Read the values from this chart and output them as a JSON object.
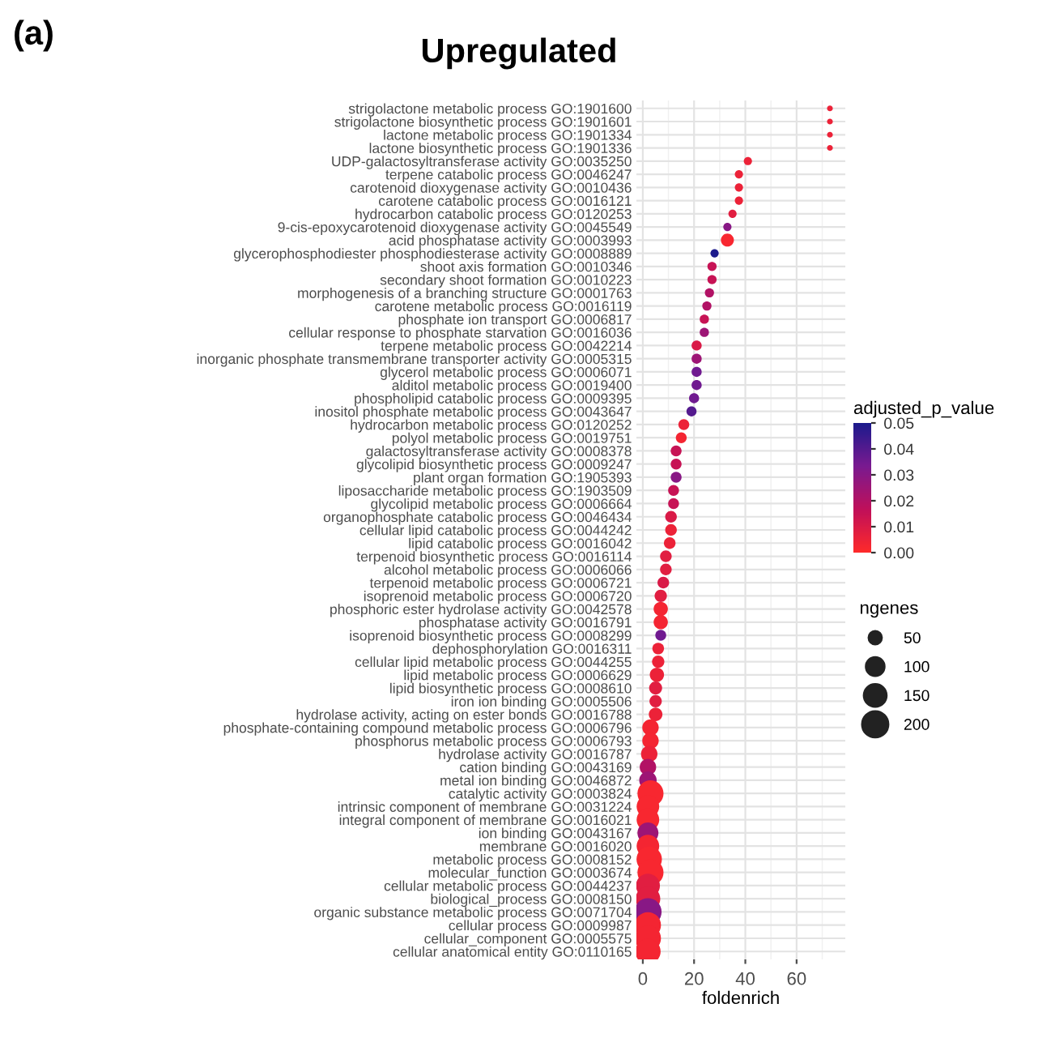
{
  "chart_data": {
    "type": "bubble",
    "title": "Upregulated",
    "xlabel": "foldenrich",
    "clabel": "adjusted_p_value",
    "legend_title": "ngenes",
    "annotations": [
      "(a)"
    ],
    "categories": [
      "strigolactone metabolic process GO:1901600",
      "strigolactone biosynthetic process GO:1901601",
      "lactone metabolic process GO:1901334",
      "lactone biosynthetic process GO:1901336",
      "UDP-galactosyltransferase activity GO:0035250",
      "terpene catabolic process GO:0046247",
      "carotenoid dioxygenase activity GO:0010436",
      "carotene catabolic process GO:0016121",
      "hydrocarbon catabolic process GO:0120253",
      "9-cis-epoxycarotenoid dioxygenase activity GO:0045549",
      "acid phosphatase activity GO:0003993",
      "glycerophosphodiester phosphodiesterase activity GO:0008889",
      "shoot axis formation GO:0010346",
      "secondary shoot formation GO:0010223",
      "morphogenesis of a branching structure GO:0001763",
      "carotene metabolic process GO:0016119",
      "phosphate ion transport GO:0006817",
      "cellular response to phosphate starvation GO:0016036",
      "terpene metabolic process GO:0042214",
      "inorganic phosphate transmembrane transporter activity GO:0005315",
      "glycerol metabolic process GO:0006071",
      "alditol metabolic process GO:0019400",
      "phospholipid catabolic process GO:0009395",
      "inositol phosphate metabolic process GO:0043647",
      "hydrocarbon metabolic process GO:0120252",
      "polyol metabolic process GO:0019751",
      "galactosyltransferase activity GO:0008378",
      "glycolipid biosynthetic process GO:0009247",
      "plant organ formation GO:1905393",
      "liposaccharide metabolic process GO:1903509",
      "glycolipid metabolic process GO:0006664",
      "organophosphate catabolic process GO:0046434",
      "cellular lipid catabolic process GO:0044242",
      "lipid catabolic process GO:0016042",
      "terpenoid biosynthetic process GO:0016114",
      "alcohol metabolic process GO:0006066",
      "terpenoid metabolic process GO:0006721",
      "isoprenoid metabolic process GO:0006720",
      "phosphoric ester hydrolase activity GO:0042578",
      "phosphatase activity GO:0016791",
      "isoprenoid biosynthetic process GO:0008299",
      "dephosphorylation GO:0016311",
      "cellular lipid metabolic process GO:0044255",
      "lipid metabolic process GO:0006629",
      "lipid biosynthetic process GO:0008610",
      "iron ion binding GO:0005506",
      "hydrolase activity, acting on ester bonds GO:0016788",
      "phosphate-containing compound metabolic process GO:0006796",
      "phosphorus metabolic process GO:0006793",
      "hydrolase activity GO:0016787",
      "cation binding GO:0043169",
      "metal ion binding GO:0046872",
      "catalytic activity GO:0003824",
      "intrinsic component of membrane GO:0031224",
      "integral component of membrane GO:0016021",
      "ion binding GO:0043167",
      "membrane GO:0016020",
      "metabolic process GO:0008152",
      "molecular_function GO:0003674",
      "cellular metabolic process GO:0044237",
      "biological_process GO:0008150",
      "organic substance metabolic process GO:0071704",
      "cellular process GO:0009987",
      "cellular_component GO:0005575",
      "cellular anatomical entity GO:0110165"
    ],
    "orientation": "horizontal",
    "values": [
      73,
      73,
      73,
      73,
      41,
      37.5,
      37.5,
      37.5,
      35,
      33,
      33,
      28,
      27,
      27,
      26,
      25,
      24,
      24,
      21,
      21,
      21,
      21,
      20,
      19,
      16,
      15,
      13,
      13,
      13,
      12,
      12,
      11,
      11,
      10.5,
      9,
      9,
      8,
      7,
      7,
      7,
      7,
      6,
      6,
      5.5,
      5,
      5,
      5,
      3,
      3,
      2.5,
      2,
      2,
      3,
      2,
      2,
      2,
      2,
      2.5,
      3,
      2,
      2,
      2,
      2,
      2,
      2
    ],
    "sizes": [
      10,
      10,
      10,
      10,
      20,
      20,
      20,
      20,
      20,
      20,
      50,
      20,
      25,
      25,
      25,
      25,
      25,
      25,
      30,
      30,
      30,
      30,
      30,
      30,
      35,
      35,
      35,
      35,
      35,
      35,
      35,
      40,
      40,
      40,
      40,
      40,
      40,
      45,
      60,
      60,
      35,
      40,
      45,
      60,
      50,
      45,
      55,
      80,
      80,
      80,
      80,
      90,
      200,
      150,
      150,
      130,
      150,
      190,
      200,
      170,
      180,
      220,
      200,
      200,
      190
    ],
    "cvalues": [
      0.005,
      0.005,
      0.005,
      0.005,
      0.005,
      0.005,
      0.005,
      0.005,
      0.008,
      0.03,
      0.002,
      0.05,
      0.015,
      0.015,
      0.02,
      0.02,
      0.015,
      0.025,
      0.01,
      0.025,
      0.035,
      0.035,
      0.035,
      0.04,
      0.005,
      0.003,
      0.015,
      0.015,
      0.03,
      0.015,
      0.015,
      0.01,
      0.005,
      0.005,
      0.008,
      0.008,
      0.01,
      0.008,
      0.003,
      0.003,
      0.035,
      0.005,
      0.005,
      0.005,
      0.008,
      0.008,
      0.005,
      0.003,
      0.003,
      0.005,
      0.02,
      0.025,
      0.002,
      0.002,
      0.002,
      0.025,
      0.003,
      0.002,
      0.002,
      0.008,
      0.008,
      0.03,
      0.003,
      0.003,
      0.003
    ],
    "size_legend": [
      50,
      100,
      150,
      200
    ],
    "xlim": [
      -2.5,
      79
    ],
    "xticks": [
      0,
      20,
      40,
      60
    ],
    "clim": [
      0,
      0.05
    ],
    "cticks": [
      {
        "value": 0,
        "label": "0.00"
      },
      {
        "value": 0.01,
        "label": "0.01"
      },
      {
        "value": 0.02,
        "label": "0.02"
      },
      {
        "value": 0.03,
        "label": "0.03"
      },
      {
        "value": 0.04,
        "label": "0.04"
      },
      {
        "value": 0.05,
        "label": "0.05"
      }
    ],
    "grid": true
  }
}
